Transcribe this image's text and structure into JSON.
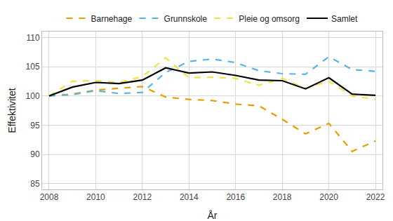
{
  "chart_data": {
    "type": "line",
    "x_label": "År",
    "y_label": "Effektivitet",
    "x": [
      2008,
      2009,
      2010,
      2011,
      2012,
      2013,
      2014,
      2015,
      2016,
      2017,
      2018,
      2019,
      2020,
      2021,
      2022
    ],
    "series": [
      {
        "name": "Barnehage",
        "color": "#E69F00",
        "line_style": "dash",
        "values": [
          100,
          100.3,
          101,
          101.3,
          101.6,
          99.8,
          99.4,
          99.2,
          98.6,
          98.3,
          96,
          93.5,
          95.3,
          90.5,
          92.3
        ]
      },
      {
        "name": "Grunnskole",
        "color": "#56B4E9",
        "line_style": "dash",
        "values": [
          100,
          100.2,
          100.9,
          100.4,
          100.6,
          104,
          105.9,
          106.3,
          105.7,
          104.3,
          103.8,
          103.7,
          106.7,
          104.5,
          104.2
        ]
      },
      {
        "name": "Pleie og omsorg",
        "color": "#F0E442",
        "line_style": "dash",
        "values": [
          100,
          102.5,
          102.6,
          102.3,
          103.3,
          106.5,
          103.1,
          103.2,
          103,
          101.8,
          103,
          101.3,
          102.5,
          100,
          99.4
        ]
      },
      {
        "name": "Samlet",
        "color": "#000000",
        "line_style": "solid",
        "values": [
          100,
          101.5,
          102.3,
          102.1,
          102.7,
          104.8,
          103.9,
          104.1,
          103.5,
          102.7,
          102.6,
          101.2,
          103.1,
          100.3,
          100.1
        ]
      }
    ],
    "xlim": [
      2007.7,
      2022.3
    ],
    "xticks": [
      2008,
      2010,
      2012,
      2014,
      2016,
      2018,
      2020,
      2022
    ],
    "ylim": [
      84,
      111
    ],
    "yticks": [
      85,
      90,
      95,
      100,
      105,
      110
    ],
    "grid": true,
    "legend": "top"
  }
}
